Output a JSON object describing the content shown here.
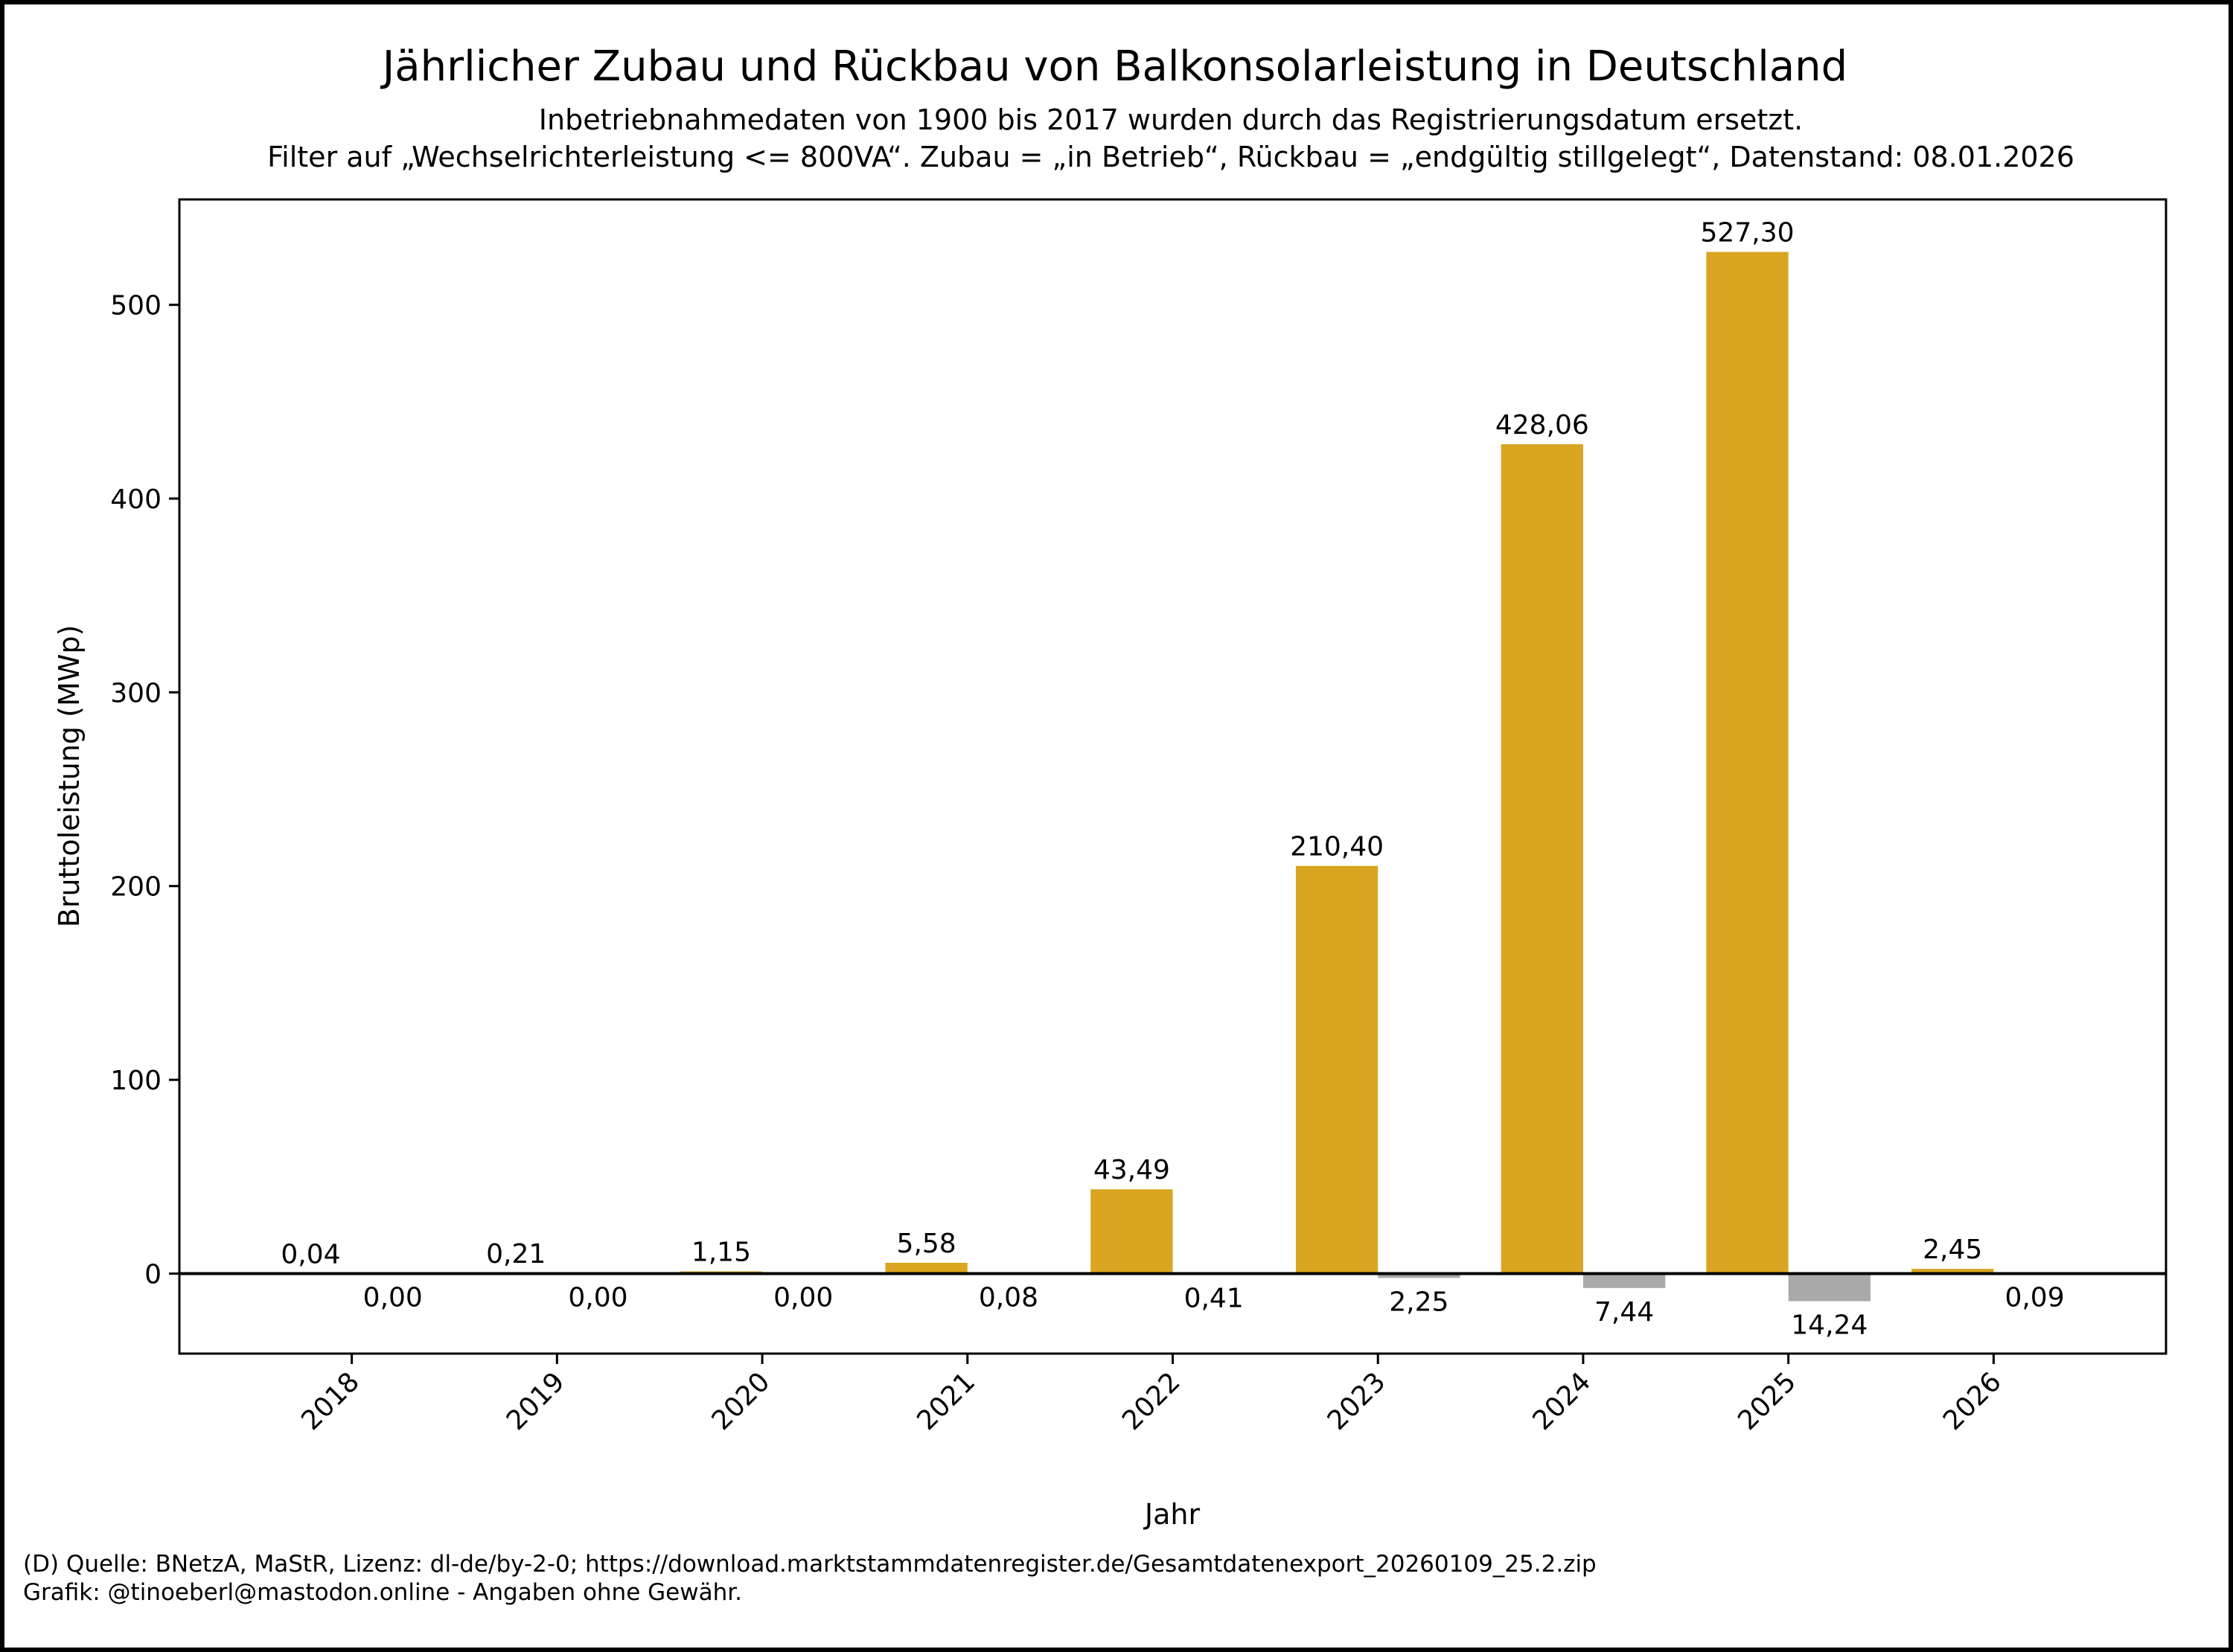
{
  "chart_data": {
    "type": "bar",
    "title": "Jährlicher Zubau und Rückbau von Balkonsolarleistung in Deutschland",
    "subtitle": [
      "Inbetriebnahmedaten von 1900 bis 2017 wurden durch das Registrierungsdatum ersetzt.",
      "Filter auf „Wechselrichterleistung <= 800VA“. Zubau = „in Betrieb“, Rückbau = „endgültig stillgelegt“, Datenstand: 08.01.2026"
    ],
    "xlabel": "Jahr",
    "ylabel": "Bruttoleistung (MWp)",
    "categories": [
      "2018",
      "2019",
      "2020",
      "2021",
      "2022",
      "2023",
      "2024",
      "2025",
      "2026"
    ],
    "series": [
      {
        "name": "Zubau",
        "color": "#DAA520",
        "values": [
          0.04,
          0.21,
          1.15,
          5.58,
          43.49,
          210.4,
          428.06,
          527.3,
          2.45
        ],
        "labels": [
          "0,04",
          "0,21",
          "1,15",
          "5,58",
          "43,49",
          "210,40",
          "428,06",
          "527,30",
          "2,45"
        ]
      },
      {
        "name": "Rückbau",
        "color": "#A9A9A9",
        "values": [
          0.0,
          0.0,
          0.0,
          -0.08,
          -0.41,
          -2.25,
          -7.44,
          -14.24,
          -0.09
        ],
        "labels": [
          "0,00",
          "0,00",
          "0,00",
          "0,08",
          "0,41",
          "2,25",
          "7,44",
          "14,24",
          "0,09"
        ]
      }
    ],
    "yticks": [
      0,
      100,
      200,
      300,
      400,
      500
    ],
    "ylim": [
      -41.3,
      554.4
    ],
    "xlim": [
      2017.16,
      2026.84
    ],
    "grid": false,
    "legend": "none"
  },
  "footer": {
    "line1": "(D) Quelle: BNetzA, MaStR, Lizenz: dl-de/by-2-0; https://download.marktstammdatenregister.de/Gesamtdatenexport_20260109_25.2.zip",
    "line2": "Grafik: @tinoeberl@mastodon.online - Angaben ohne Gewähr."
  }
}
